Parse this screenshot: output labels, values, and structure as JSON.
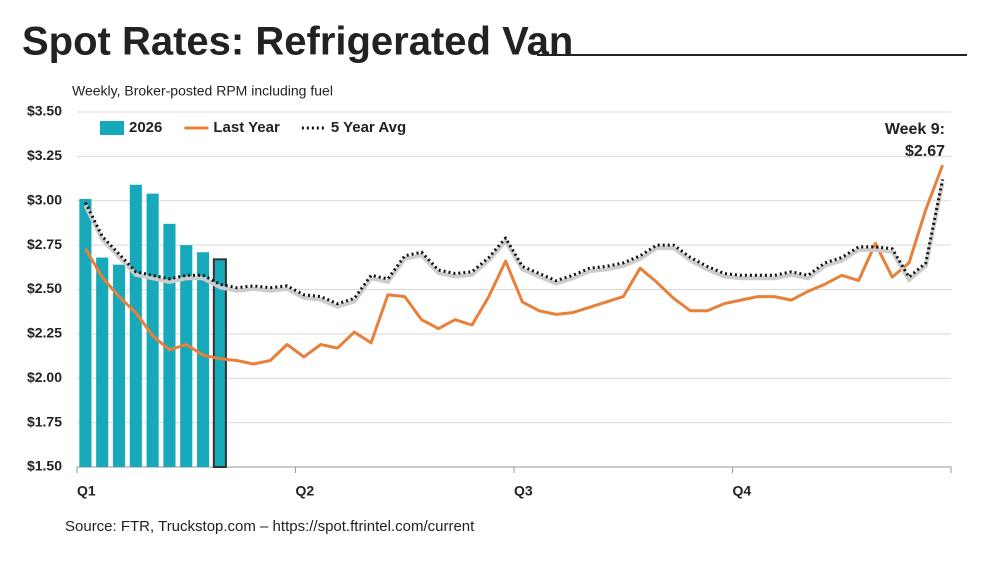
{
  "chart_data": {
    "type": "bar-line",
    "title": "Spot Rates: Refrigerated Van",
    "subtitle": "Weekly, Broker-posted RPM including fuel",
    "source": "Source: FTR, Truckstop.com – https://spot.ftrintel.com/current",
    "annotation": [
      "Week 9:",
      "$2.67"
    ],
    "categories": [
      "Q1",
      null,
      null,
      null,
      null,
      null,
      null,
      null,
      null,
      null,
      null,
      null,
      null,
      "Q2",
      null,
      null,
      null,
      null,
      null,
      null,
      null,
      null,
      null,
      null,
      null,
      null,
      "Q3",
      null,
      null,
      null,
      null,
      null,
      null,
      null,
      null,
      null,
      null,
      null,
      null,
      "Q4",
      null,
      null,
      null,
      null,
      null,
      null,
      null,
      null,
      null,
      null,
      null,
      null
    ],
    "series": [
      {
        "name": "2026",
        "type": "bar",
        "color": "#17a9b9",
        "values": [
          3.01,
          2.68,
          2.64,
          3.09,
          3.04,
          2.87,
          2.75,
          2.71,
          2.67,
          null,
          null,
          null,
          null,
          null,
          null,
          null,
          null,
          null,
          null,
          null,
          null,
          null,
          null,
          null,
          null,
          null,
          null,
          null,
          null,
          null,
          null,
          null,
          null,
          null,
          null,
          null,
          null,
          null,
          null,
          null,
          null,
          null,
          null,
          null,
          null,
          null,
          null,
          null,
          null,
          null,
          null,
          null
        ]
      },
      {
        "name": "Last Year",
        "type": "line",
        "color": "#e8803a",
        "values": [
          2.73,
          2.57,
          2.46,
          2.37,
          2.24,
          2.16,
          2.19,
          2.13,
          2.11,
          2.1,
          2.08,
          2.1,
          2.19,
          2.12,
          2.19,
          2.17,
          2.26,
          2.2,
          2.47,
          2.46,
          2.33,
          2.28,
          2.33,
          2.3,
          2.46,
          2.66,
          2.43,
          2.38,
          2.36,
          2.37,
          2.4,
          2.43,
          2.46,
          2.62,
          2.54,
          2.45,
          2.38,
          2.38,
          2.42,
          2.44,
          2.46,
          2.46,
          2.44,
          2.49,
          2.53,
          2.58,
          2.55,
          2.76,
          2.57,
          2.65,
          2.95,
          3.2
        ]
      },
      {
        "name": "5 Year Avg",
        "type": "dotted-line",
        "color": "#111111",
        "values": [
          2.99,
          2.8,
          2.7,
          2.6,
          2.58,
          2.56,
          2.58,
          2.58,
          2.53,
          2.51,
          2.52,
          2.51,
          2.52,
          2.47,
          2.46,
          2.42,
          2.45,
          2.58,
          2.56,
          2.69,
          2.71,
          2.61,
          2.59,
          2.6,
          2.68,
          2.79,
          2.63,
          2.59,
          2.55,
          2.58,
          2.62,
          2.63,
          2.65,
          2.69,
          2.75,
          2.75,
          2.68,
          2.63,
          2.59,
          2.58,
          2.58,
          2.58,
          2.6,
          2.58,
          2.65,
          2.68,
          2.74,
          2.74,
          2.73,
          2.57,
          2.65,
          3.12
        ]
      }
    ],
    "ylim": [
      1.5,
      3.5
    ],
    "yticks": [
      {
        "value": 1.5,
        "label": "$1.50"
      },
      {
        "value": 1.75,
        "label": "$1.75"
      },
      {
        "value": 2.0,
        "label": "$2.00"
      },
      {
        "value": 2.25,
        "label": "$2.25"
      },
      {
        "value": 2.5,
        "label": "$2.50"
      },
      {
        "value": 2.75,
        "label": "$2.75"
      },
      {
        "value": 3.0,
        "label": "$3.00"
      },
      {
        "value": 3.25,
        "label": "$3.25"
      },
      {
        "value": 3.5,
        "label": "$3.50"
      }
    ],
    "grid": true,
    "legend": "top-left"
  }
}
